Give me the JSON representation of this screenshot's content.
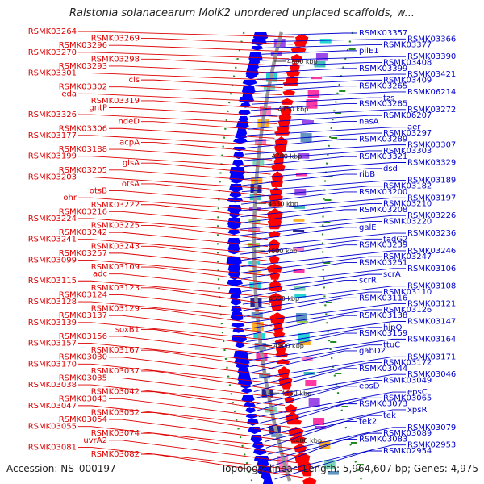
{
  "header": {
    "title": "Ralstonia solanacearum MolK2 unordered unplaced scaffolds, w..."
  },
  "footer": {
    "accession": "Accession: NS_000197",
    "summary": "Topology: linear; Length: 5,964,607 bp; Genes: 4,975"
  },
  "colors": {
    "forward_strand": "#ff0000",
    "reverse_strand": "#0000ff",
    "left_label": "#dd0000",
    "right_label": "#0000cc",
    "backbone": "#999999",
    "dotted_guides": "#228b22",
    "rna_markers": "#228b22"
  },
  "ticks": [
    {
      "label": "4800 kbp"
    },
    {
      "label": "4750 kbp"
    },
    {
      "label": "4700 kbp"
    },
    {
      "label": "4650 kbp"
    },
    {
      "label": "4600 kbp"
    },
    {
      "label": "4550 kbp"
    },
    {
      "label": "4500 kbp"
    },
    {
      "label": "4450 kbp"
    },
    {
      "label": "4400 kbp"
    }
  ],
  "left_labels": [
    "RSMK03264",
    "RSMK03269",
    "RSMK03296",
    "RSMK03270",
    "RSMK03298",
    "RSMK03293",
    "RSMK03301",
    "cls",
    "RSMK03302",
    "eda",
    "RSMK03319",
    "gntP",
    "RSMK03326",
    "ndeD",
    "RSMK03306",
    "RSMK03177",
    "acpA",
    "RSMK03188",
    "RSMK03199",
    "glsA",
    "RSMK03205",
    "RSMK03203",
    "otsA",
    "otsB",
    "ohr",
    "RSMK03222",
    "RSMK03216",
    "RSMK03224",
    "RSMK03225",
    "RSMK03242",
    "RSMK03241",
    "RSMK03243",
    "RSMK03257",
    "RSMK03099",
    "RSMK03109",
    "adc",
    "RSMK03115",
    "RSMK03123",
    "RSMK03124",
    "RSMK03128",
    "RSMK03129",
    "RSMK03137",
    "RSMK03139",
    "soxB1",
    "RSMK03156",
    "RSMK03157",
    "RSMK03167",
    "RSMK03030",
    "RSMK03170",
    "RSMK03037",
    "RSMK03035",
    "RSMK03038",
    "RSMK03042",
    "RSMK03043",
    "RSMK03047",
    "RSMK03052",
    "RSMK03054",
    "RSMK03055",
    "RSMK03074",
    "uvrA2",
    "RSMK03081",
    "RSMK03082"
  ],
  "right_labels": [
    "RSMK03357",
    "RSMK03366",
    "RSMK03377",
    "pilE1",
    "RSMK03390",
    "RSMK03408",
    "RSMK03399",
    "RSMK03421",
    "RSMK03409",
    "RSMK03265",
    "RSMK06214",
    "tzs",
    "RSMK03285",
    "RSMK03272",
    "RSMK06207",
    "nasA",
    "aer",
    "RSMK03297",
    "RSMK03289",
    "RSMK03307",
    "RSMK03303",
    "RSMK03321",
    "RSMK03329",
    "dsd",
    "ribB",
    "RSMK03189",
    "RSMK03182",
    "RSMK03200",
    "RSMK03197",
    "RSMK03210",
    "RSMK03208",
    "RSMK03226",
    "RSMK03220",
    "galE",
    "RSMK03236",
    "tadG2",
    "RSMK03239",
    "RSMK03246",
    "RSMK03247",
    "RSMK03251",
    "RSMK03106",
    "scrA",
    "scrR",
    "RSMK03108",
    "RSMK03110",
    "RSMK03116",
    "RSMK03121",
    "RSMK03126",
    "RSMK03138",
    "RSMK03147",
    "hipO",
    "RSMK03159",
    "RSMK03164",
    "ttuC",
    "gabD2",
    "RSMK03171",
    "RSMK03172",
    "RSMK03044",
    "RSMK03046",
    "RSMK03049",
    "epsD",
    "epsC",
    "RSMK03065",
    "RSMK03073",
    "xpsR",
    "tek",
    "tek2",
    "RSMK03079",
    "RSMK03089",
    "RSMK03083",
    "RSMK02953",
    "RSMK02954"
  ]
}
